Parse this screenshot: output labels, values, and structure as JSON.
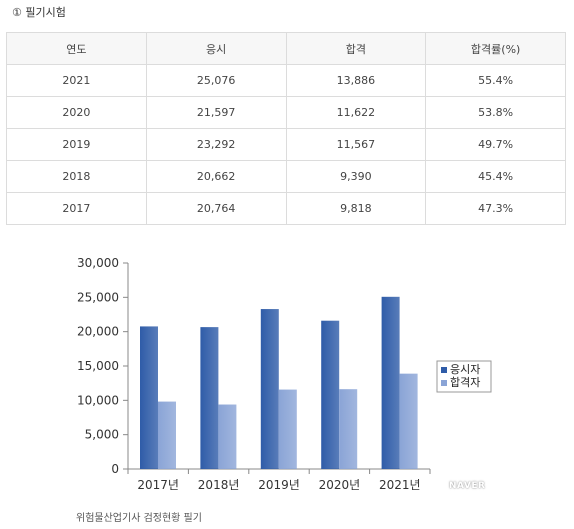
{
  "section_title": "① 필기시험",
  "table": {
    "headers": [
      "연도",
      "응시",
      "합격",
      "합격률(%)"
    ],
    "rows": [
      [
        "2021",
        "25,076",
        "13,886",
        "55.4%"
      ],
      [
        "2020",
        "21,597",
        "11,622",
        "53.8%"
      ],
      [
        "2019",
        "23,292",
        "11,567",
        "49.7%"
      ],
      [
        "2018",
        "20,662",
        "9,390",
        "45.4%"
      ],
      [
        "2017",
        "20,764",
        "9,818",
        "47.3%"
      ]
    ]
  },
  "chart_data": {
    "type": "bar",
    "title": "",
    "categories": [
      "2017년",
      "2018년",
      "2019년",
      "2020년",
      "2021년"
    ],
    "series": [
      {
        "name": "응시자",
        "values": [
          20764,
          20662,
          23292,
          21597,
          25076
        ],
        "color": "#2f5ca8"
      },
      {
        "name": "합격자",
        "values": [
          9818,
          9390,
          11567,
          11622,
          13886
        ],
        "color": "#8aa4d6"
      }
    ],
    "ylim": [
      0,
      30000
    ],
    "yticks": [
      0,
      5000,
      10000,
      15000,
      20000,
      25000,
      30000
    ],
    "ytick_labels": [
      "0",
      "5,000",
      "10,000",
      "15,000",
      "20,000",
      "25,000",
      "30,000"
    ],
    "legend": "right",
    "grid": false
  },
  "watermark": "NAVER",
  "caption": "위험물산업기사 검정현황 필기"
}
